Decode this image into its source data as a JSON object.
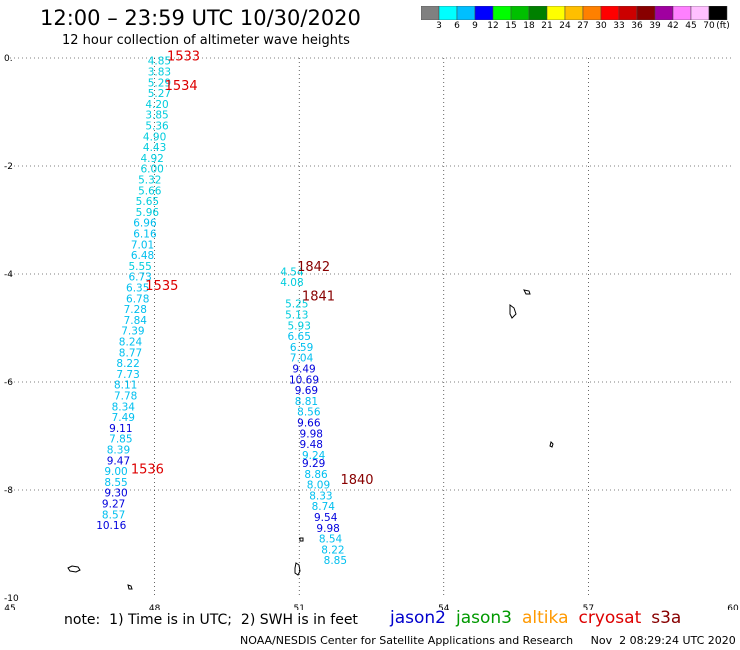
{
  "header": {
    "title": "12:00 – 23:59 UTC 10/30/2020",
    "subtitle": "12 hour collection of altimeter wave heights"
  },
  "colorbar": {
    "unit": "(ft)",
    "labels": [
      "3",
      "6",
      "9",
      "12",
      "15",
      "18",
      "21",
      "24",
      "27",
      "30",
      "33",
      "36",
      "39",
      "42",
      "45",
      "70"
    ],
    "colors": [
      "#808080",
      "#00ffff",
      "#00bfff",
      "#0000ff",
      "#00ff00",
      "#00c000",
      "#008000",
      "#ffff00",
      "#ffbf00",
      "#ff8000",
      "#ff0000",
      "#cc0000",
      "#880000",
      "#a000a0",
      "#ff80ff",
      "#ffc0ff",
      "#000000"
    ]
  },
  "note": "note:  1) Time is in UTC;  2) SWH is in feet",
  "legend": [
    {
      "name": "jason2",
      "color": "#0000cc"
    },
    {
      "name": "jason3",
      "color": "#009900"
    },
    {
      "name": "altika",
      "color": "#ff9900"
    },
    {
      "name": "cryosat",
      "color": "#dd0000"
    },
    {
      "name": "s3a",
      "color": "#880000"
    }
  ],
  "footer": "NOAA/NESDIS Center for Satellite Applications and Research     Nov  2 08:29:24 UTC 2020",
  "chart_data": {
    "type": "scatter",
    "title": "12:00 – 23:59 UTC 10/30/2020",
    "xlim": [
      45,
      60
    ],
    "ylim": [
      -10,
      0
    ],
    "xticks": [
      "45",
      "48",
      "51",
      "54",
      "57",
      "60"
    ],
    "yticks": [
      "0.",
      "-2",
      "-4",
      "-6",
      "-8",
      "-10"
    ],
    "grid": true,
    "tracks": [
      {
        "name": "track-1",
        "points": [
          {
            "x": 48.1,
            "y": -0.05,
            "v": "4.85",
            "c": "#00ccdd"
          },
          {
            "x": 48.1,
            "y": -0.25,
            "v": "3.83",
            "c": "#00ccdd"
          },
          {
            "x": 48.1,
            "y": -0.45,
            "v": "5.29",
            "c": "#00ccdd"
          },
          {
            "x": 48.1,
            "y": -0.65,
            "v": "5.27",
            "c": "#00ccdd"
          },
          {
            "x": 48.05,
            "y": -0.85,
            "v": "4.20",
            "c": "#00ccdd"
          },
          {
            "x": 48.05,
            "y": -1.05,
            "v": "3.85",
            "c": "#00ccdd"
          },
          {
            "x": 48.05,
            "y": -1.25,
            "v": "5.36",
            "c": "#00ccdd"
          },
          {
            "x": 48.0,
            "y": -1.45,
            "v": "4.90",
            "c": "#00ccdd"
          },
          {
            "x": 48.0,
            "y": -1.65,
            "v": "4.43",
            "c": "#00ccdd"
          },
          {
            "x": 47.95,
            "y": -1.85,
            "v": "4.92",
            "c": "#00ccdd"
          },
          {
            "x": 47.95,
            "y": -2.05,
            "v": "6.00",
            "c": "#00ccdd"
          },
          {
            "x": 47.9,
            "y": -2.25,
            "v": "5.32",
            "c": "#00ccdd"
          },
          {
            "x": 47.9,
            "y": -2.45,
            "v": "5.66",
            "c": "#00ccdd"
          },
          {
            "x": 47.85,
            "y": -2.65,
            "v": "5.65",
            "c": "#00ccdd"
          },
          {
            "x": 47.85,
            "y": -2.85,
            "v": "5.96",
            "c": "#00ccdd"
          },
          {
            "x": 47.8,
            "y": -3.05,
            "v": "6.96",
            "c": "#00bfef"
          },
          {
            "x": 47.8,
            "y": -3.25,
            "v": "6.16",
            "c": "#00bfef"
          },
          {
            "x": 47.75,
            "y": -3.45,
            "v": "7.01",
            "c": "#00bfef"
          },
          {
            "x": 47.75,
            "y": -3.65,
            "v": "6.48",
            "c": "#00bfef"
          },
          {
            "x": 47.7,
            "y": -3.85,
            "v": "5.55",
            "c": "#00ccdd"
          },
          {
            "x": 47.7,
            "y": -4.05,
            "v": "6.73",
            "c": "#00bfef"
          },
          {
            "x": 47.65,
            "y": -4.25,
            "v": "6.35",
            "c": "#00bfef"
          },
          {
            "x": 47.65,
            "y": -4.45,
            "v": "6.78",
            "c": "#00bfef"
          },
          {
            "x": 47.6,
            "y": -4.65,
            "v": "7.28",
            "c": "#00bfef"
          },
          {
            "x": 47.6,
            "y": -4.85,
            "v": "7.84",
            "c": "#00bfef"
          },
          {
            "x": 47.55,
            "y": -5.05,
            "v": "7.39",
            "c": "#00bfef"
          },
          {
            "x": 47.5,
            "y": -5.25,
            "v": "8.24",
            "c": "#00bfef"
          },
          {
            "x": 47.5,
            "y": -5.45,
            "v": "8.77",
            "c": "#00bfef"
          },
          {
            "x": 47.45,
            "y": -5.65,
            "v": "8.22",
            "c": "#00bfef"
          },
          {
            "x": 47.45,
            "y": -5.85,
            "v": "7.73",
            "c": "#00bfef"
          },
          {
            "x": 47.4,
            "y": -6.05,
            "v": "8.11",
            "c": "#00bfef"
          },
          {
            "x": 47.4,
            "y": -6.25,
            "v": "7.78",
            "c": "#00bfef"
          },
          {
            "x": 47.35,
            "y": -6.45,
            "v": "8.34",
            "c": "#00bfef"
          },
          {
            "x": 47.35,
            "y": -6.65,
            "v": "7.49",
            "c": "#00bfef"
          },
          {
            "x": 47.3,
            "y": -6.85,
            "v": "9.11",
            "c": "#0000dd"
          },
          {
            "x": 47.3,
            "y": -7.05,
            "v": "7.85",
            "c": "#00bfef"
          },
          {
            "x": 47.25,
            "y": -7.25,
            "v": "8.39",
            "c": "#00bfef"
          },
          {
            "x": 47.25,
            "y": -7.45,
            "v": "9.47",
            "c": "#0000dd"
          },
          {
            "x": 47.2,
            "y": -7.65,
            "v": "9.00",
            "c": "#00bfef"
          },
          {
            "x": 47.2,
            "y": -7.85,
            "v": "8.55",
            "c": "#00bfef"
          },
          {
            "x": 47.2,
            "y": -8.05,
            "v": "9.30",
            "c": "#0000dd"
          },
          {
            "x": 47.15,
            "y": -8.25,
            "v": "9.27",
            "c": "#0000dd"
          },
          {
            "x": 47.15,
            "y": -8.45,
            "v": "8.57",
            "c": "#00bfef"
          },
          {
            "x": 47.1,
            "y": -8.65,
            "v": "10.16",
            "c": "#0000dd"
          }
        ]
      },
      {
        "name": "track-2",
        "points": [
          {
            "x": 50.85,
            "y": -3.95,
            "v": "4.54",
            "c": "#00ccdd"
          },
          {
            "x": 50.85,
            "y": -4.15,
            "v": "4.08",
            "c": "#00ccdd"
          },
          {
            "x": 50.95,
            "y": -4.55,
            "v": "5.25",
            "c": "#00ccdd"
          },
          {
            "x": 50.95,
            "y": -4.75,
            "v": "5.13",
            "c": "#00ccdd"
          },
          {
            "x": 51.0,
            "y": -4.95,
            "v": "5.93",
            "c": "#00ccdd"
          },
          {
            "x": 51.0,
            "y": -5.15,
            "v": "6.65",
            "c": "#00bfef"
          },
          {
            "x": 51.05,
            "y": -5.35,
            "v": "6.59",
            "c": "#00bfef"
          },
          {
            "x": 51.05,
            "y": -5.55,
            "v": "7.04",
            "c": "#00bfef"
          },
          {
            "x": 51.1,
            "y": -5.75,
            "v": "9.49",
            "c": "#0000dd"
          },
          {
            "x": 51.1,
            "y": -5.95,
            "v": "10.69",
            "c": "#0000dd"
          },
          {
            "x": 51.15,
            "y": -6.15,
            "v": "9.69",
            "c": "#0000dd"
          },
          {
            "x": 51.15,
            "y": -6.35,
            "v": "8.81",
            "c": "#00bfef"
          },
          {
            "x": 51.2,
            "y": -6.55,
            "v": "8.56",
            "c": "#00bfef"
          },
          {
            "x": 51.2,
            "y": -6.75,
            "v": "9.66",
            "c": "#0000dd"
          },
          {
            "x": 51.25,
            "y": -6.95,
            "v": "9.98",
            "c": "#0000dd"
          },
          {
            "x": 51.25,
            "y": -7.15,
            "v": "9.48",
            "c": "#0000dd"
          },
          {
            "x": 51.3,
            "y": -7.35,
            "v": "9.24",
            "c": "#00bfef"
          },
          {
            "x": 51.3,
            "y": -7.5,
            "v": "9.29",
            "c": "#0000dd"
          },
          {
            "x": 51.35,
            "y": -7.7,
            "v": "8.86",
            "c": "#00bfef"
          },
          {
            "x": 51.4,
            "y": -7.9,
            "v": "8.09",
            "c": "#00bfef"
          },
          {
            "x": 51.45,
            "y": -8.1,
            "v": "8.33",
            "c": "#00bfef"
          },
          {
            "x": 51.5,
            "y": -8.3,
            "v": "8.74",
            "c": "#00bfef"
          },
          {
            "x": 51.55,
            "y": -8.5,
            "v": "9.54",
            "c": "#0000dd"
          },
          {
            "x": 51.6,
            "y": -8.7,
            "v": "9.98",
            "c": "#0000dd"
          },
          {
            "x": 51.65,
            "y": -8.9,
            "v": "8.54",
            "c": "#00bfef"
          },
          {
            "x": 51.7,
            "y": -9.1,
            "v": "8.22",
            "c": "#00bfef"
          },
          {
            "x": 51.75,
            "y": -9.3,
            "v": "8.85",
            "c": "#00bfef"
          }
        ]
      }
    ],
    "pass_times": [
      {
        "label": "1533",
        "x": 48.6,
        "y": 0.05,
        "color": "#dd0000"
      },
      {
        "label": "1534",
        "x": 48.55,
        "y": -0.5,
        "color": "#dd0000"
      },
      {
        "label": "1535",
        "x": 48.15,
        "y": -4.2,
        "color": "#dd0000"
      },
      {
        "label": "1536",
        "x": 47.85,
        "y": -7.6,
        "color": "#dd0000"
      },
      {
        "label": "1842",
        "x": 51.3,
        "y": -3.85,
        "color": "#880000"
      },
      {
        "label": "1841",
        "x": 51.4,
        "y": -4.4,
        "color": "#880000"
      },
      {
        "label": "1840",
        "x": 52.2,
        "y": -7.8,
        "color": "#880000"
      }
    ]
  }
}
